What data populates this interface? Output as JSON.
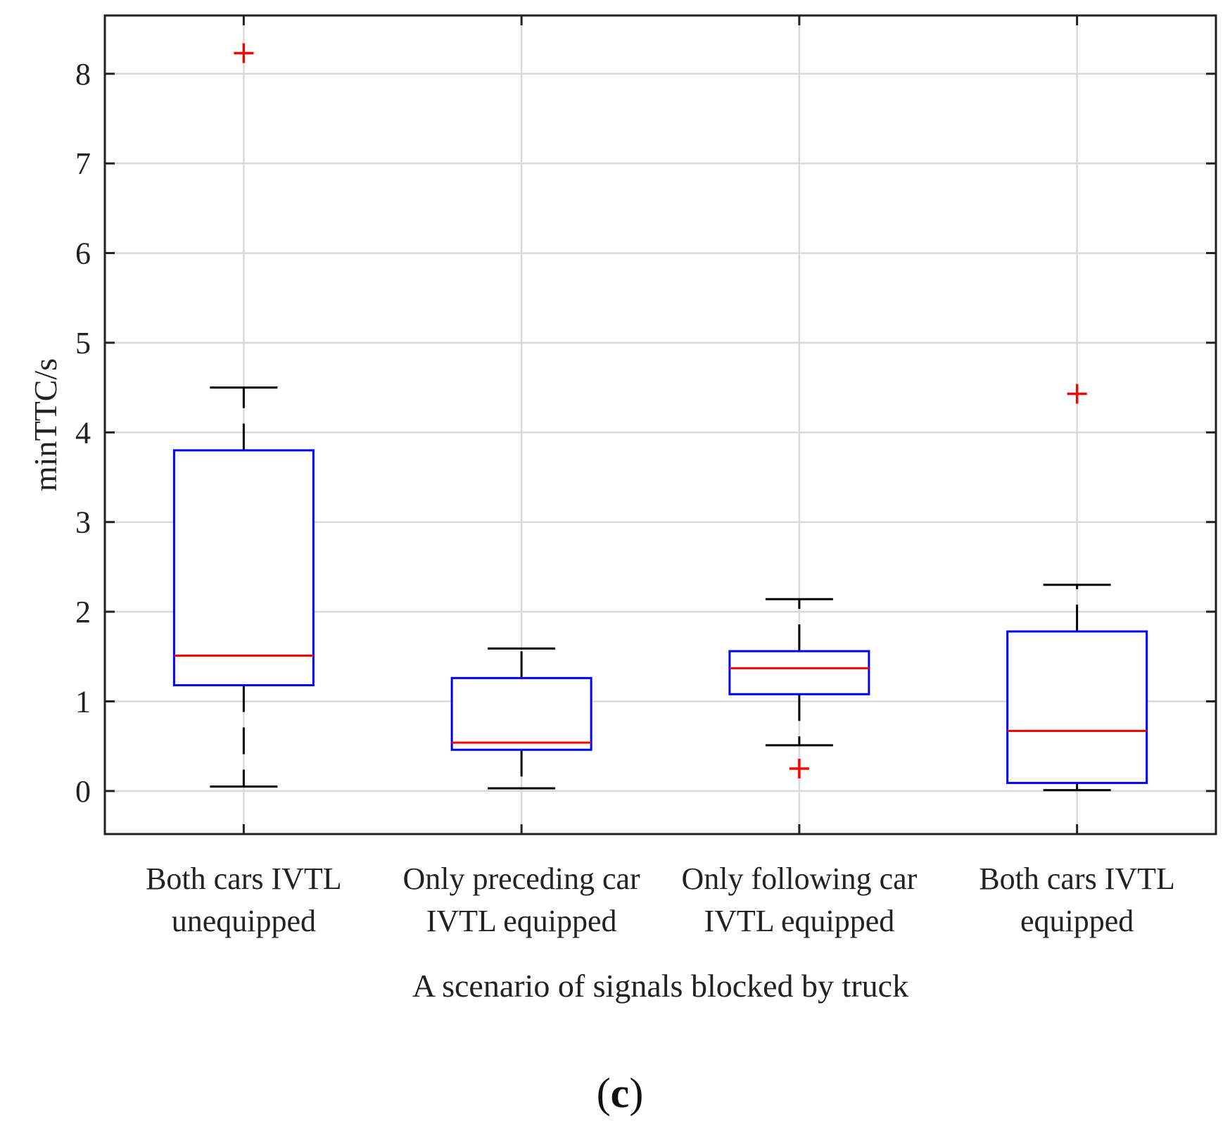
{
  "chart_data": {
    "type": "boxplot",
    "title": "",
    "xlabel": "A scenario of signals blocked by truck",
    "ylabel": "minTTC/s",
    "ylim": [
      -0.48,
      8.65
    ],
    "yticks": [
      0,
      1,
      2,
      3,
      4,
      5,
      6,
      7,
      8
    ],
    "grid": true,
    "categories": [
      [
        "Both cars IVTL",
        "unequipped"
      ],
      [
        "Only preceding car",
        "IVTL equipped"
      ],
      [
        "Only following car",
        "IVTL equipped"
      ],
      [
        "Both cars IVTL",
        "equipped"
      ]
    ],
    "boxes": [
      {
        "whisker_low": 0.05,
        "q1": 1.18,
        "median": 1.51,
        "q3": 3.8,
        "whisker_high": 4.5,
        "outliers": [
          8.23
        ]
      },
      {
        "whisker_low": 0.03,
        "q1": 0.46,
        "median": 0.54,
        "q3": 1.26,
        "whisker_high": 1.59,
        "outliers": []
      },
      {
        "whisker_low": 0.51,
        "q1": 1.08,
        "median": 1.37,
        "q3": 1.56,
        "whisker_high": 2.14,
        "outliers": [
          0.25
        ]
      },
      {
        "whisker_low": 0.01,
        "q1": 0.09,
        "median": 0.67,
        "q3": 1.78,
        "whisker_high": 2.3,
        "outliers": [
          4.43
        ]
      }
    ],
    "colors": {
      "box": "#0000ff",
      "median": "#ff0000",
      "whisker": "#000000",
      "outlier": "#ff0000",
      "grid": "#d9d9d9",
      "axis": "#222222"
    }
  },
  "caption": {
    "open": "(",
    "letter": "c",
    "close": ")"
  }
}
